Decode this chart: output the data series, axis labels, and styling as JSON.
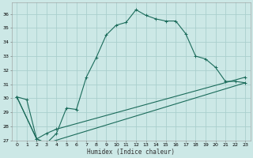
{
  "xlabel": "Humidex (Indice chaleur)",
  "bg_color": "#cce8e6",
  "grid_color": "#aacfcd",
  "line_color": "#1a6b5a",
  "xlim": [
    -0.5,
    23.5
  ],
  "ylim": [
    27,
    36.8
  ],
  "yticks": [
    27,
    28,
    29,
    30,
    31,
    32,
    33,
    34,
    35,
    36
  ],
  "xticks": [
    0,
    1,
    2,
    3,
    4,
    5,
    6,
    7,
    8,
    9,
    10,
    11,
    12,
    13,
    14,
    15,
    16,
    17,
    18,
    19,
    20,
    21,
    22,
    23
  ],
  "series1_x": [
    0,
    1,
    2,
    3,
    4,
    5,
    6,
    7,
    8,
    9,
    10,
    11,
    12,
    13,
    14,
    15,
    16,
    17,
    18,
    19,
    20,
    21,
    22,
    23
  ],
  "series1_y": [
    30.1,
    29.9,
    27.1,
    26.8,
    27.5,
    29.3,
    29.2,
    31.5,
    32.9,
    34.5,
    35.2,
    35.4,
    36.3,
    35.9,
    35.65,
    35.5,
    35.5,
    34.6,
    33.0,
    32.8,
    32.2,
    31.2,
    31.2,
    31.1
  ],
  "series2_x": [
    0,
    2,
    3,
    4,
    23
  ],
  "series2_y": [
    30.1,
    27.1,
    27.5,
    27.8,
    31.5
  ],
  "series3_x": [
    0,
    2,
    3,
    23
  ],
  "series3_y": [
    30.1,
    27.1,
    26.8,
    31.1
  ]
}
